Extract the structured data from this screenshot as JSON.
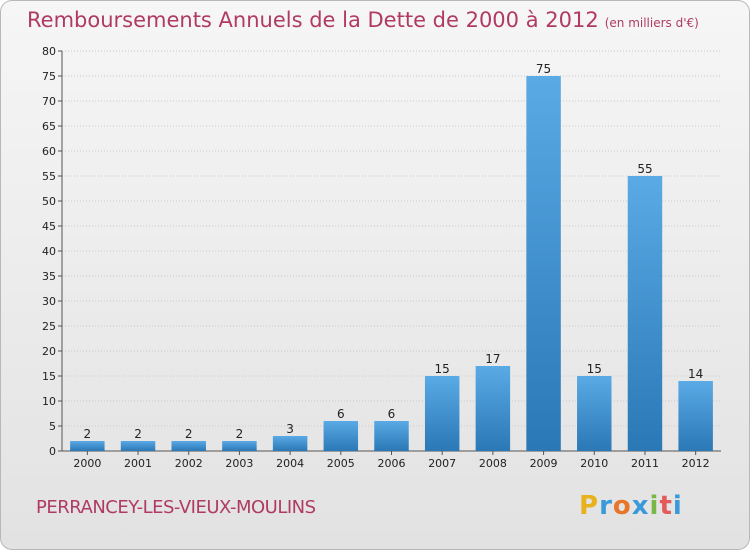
{
  "title": {
    "main": "Remboursements Annuels de la Dette de 2000 à 2012",
    "unit": "(en milliers d'€)"
  },
  "commune": "PERRANCEY-LES-VIEUX-MOULINS",
  "logo": {
    "letters": [
      "P",
      "r",
      "o",
      "x",
      "i",
      "t",
      "i"
    ],
    "colors": [
      "#e8b21c",
      "#3a9ad9",
      "#e8762a",
      "#3a9ad9",
      "#7ab648",
      "#e25a5a",
      "#3a9ad9"
    ]
  },
  "colors": {
    "title": "#b03a64",
    "bar_top": "#5aaae6",
    "bar_bottom": "#2a78b5",
    "grid": "#c9c9c9"
  },
  "chart_data": {
    "type": "bar",
    "title": "Remboursements Annuels de la Dette de 2000 à 2012",
    "subtitle": "(en milliers d'€)",
    "xlabel": "",
    "ylabel": "",
    "categories": [
      "2000",
      "2001",
      "2002",
      "2003",
      "2004",
      "2005",
      "2006",
      "2007",
      "2008",
      "2009",
      "2010",
      "2011",
      "2012"
    ],
    "values": [
      2,
      2,
      2,
      2,
      3,
      6,
      6,
      15,
      17,
      75,
      15,
      55,
      14
    ],
    "ylim": [
      0,
      80
    ],
    "yticks": [
      0,
      5,
      10,
      15,
      20,
      25,
      30,
      35,
      40,
      45,
      50,
      55,
      60,
      65,
      70,
      75,
      80
    ],
    "grid": true,
    "legend": "none"
  }
}
